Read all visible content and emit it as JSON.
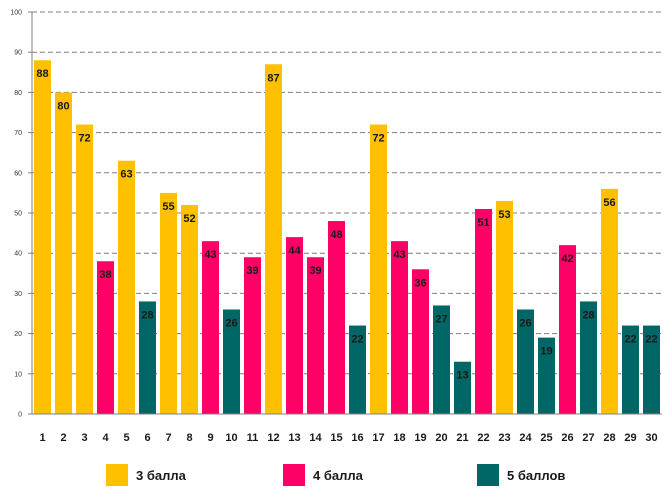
{
  "chart_data": {
    "type": "bar",
    "categories": [
      "1",
      "2",
      "3",
      "4",
      "5",
      "6",
      "7",
      "8",
      "9",
      "10",
      "11",
      "12",
      "13",
      "14",
      "15",
      "16",
      "17",
      "18",
      "19",
      "20",
      "21",
      "22",
      "23",
      "24",
      "25",
      "26",
      "27",
      "28",
      "29",
      "30"
    ],
    "values": [
      88,
      80,
      72,
      38,
      63,
      28,
      55,
      52,
      43,
      26,
      39,
      87,
      44,
      39,
      48,
      22,
      72,
      43,
      36,
      27,
      13,
      51,
      53,
      26,
      19,
      42,
      28,
      56,
      22,
      22
    ],
    "groups": [
      "3",
      "3",
      "3",
      "4",
      "3",
      "5",
      "3",
      "3",
      "4",
      "5",
      "4",
      "3",
      "4",
      "4",
      "4",
      "5",
      "3",
      "4",
      "4",
      "5",
      "5",
      "4",
      "3",
      "5",
      "5",
      "4",
      "5",
      "3",
      "5",
      "5"
    ],
    "ylim": [
      0,
      100
    ],
    "yticks": [
      0,
      10,
      20,
      30,
      40,
      50,
      60,
      70,
      80,
      90,
      100
    ],
    "grid": true,
    "legend_position": "bottom",
    "legend": [
      {
        "key": "3",
        "label": "3 балла",
        "color": "#FFC000"
      },
      {
        "key": "4",
        "label": "4 балла",
        "color": "#FF0066"
      },
      {
        "key": "5",
        "label": "5 баллов",
        "color": "#006666"
      }
    ]
  }
}
